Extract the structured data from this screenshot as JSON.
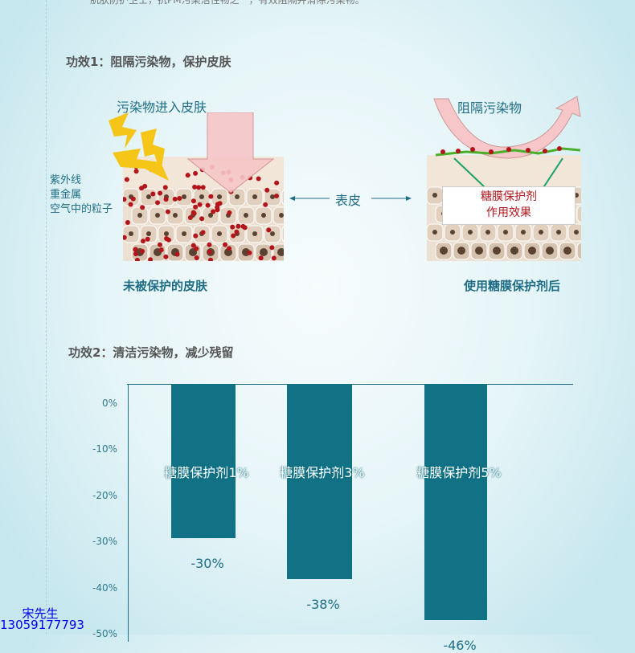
{
  "intro_text": "肌肤防护卫士，抗PM污染活性物之一，有效阻隔并清除污染物。",
  "section1": {
    "title": "功效1：阻隔污染物，保护皮肤",
    "left": {
      "arrow_label": "污染物进入皮肤",
      "sources": [
        "紫外线",
        "重金属",
        "空气中的粒子"
      ],
      "caption": "未被保护的皮肤"
    },
    "middle_label": "表皮",
    "right": {
      "arrow_label": "阻隔污染物",
      "box_lines": [
        "糖膜保护剂",
        "作用效果"
      ],
      "caption": "使用糖膜保护剂后"
    },
    "colors": {
      "pollutant": "#b3151b",
      "film": "#4caf2a",
      "arrow": "#f7c6c8",
      "lightning": "#f5c518"
    }
  },
  "section2": {
    "title": "功效2：清洁污染物，减少残留"
  },
  "chart_data": {
    "type": "bar",
    "categories": [
      "糖膜保护剂1%",
      "糖膜保护剂3%",
      "糖膜保护剂5%"
    ],
    "values": [
      -30,
      -38,
      -46
    ],
    "value_labels": [
      "-30%",
      "-38%",
      "-46%"
    ],
    "yticks": [
      "0%",
      "-10%",
      "-20%",
      "-30%",
      "-40%",
      "-50%"
    ],
    "ylim": [
      -50,
      0
    ],
    "bar_color": "#117185",
    "grid": false
  },
  "contact": {
    "name": "宋先生",
    "phone": "13059177793"
  }
}
